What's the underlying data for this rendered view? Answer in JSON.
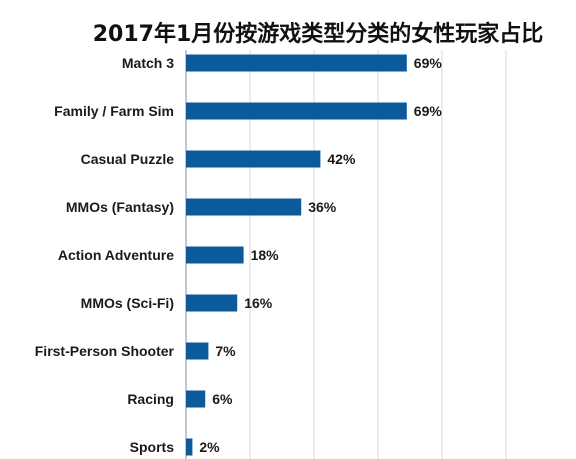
{
  "chart_data": {
    "type": "bar",
    "orientation": "horizontal",
    "title": "2017年1月份按游戏类型分类的女性玩家占比",
    "categories": [
      "Match 3",
      "Family / Farm Sim",
      "Casual Puzzle",
      "MMOs (Fantasy)",
      "Action Adventure",
      "MMOs (Sci-Fi)",
      "First-Person Shooter",
      "Racing",
      "Sports"
    ],
    "values": [
      69,
      69,
      42,
      36,
      18,
      16,
      7,
      6,
      2
    ],
    "value_labels": [
      "69%",
      "69%",
      "42%",
      "36%",
      "18%",
      "16%",
      "7%",
      "6%",
      "2%"
    ],
    "xlim": [
      0,
      100
    ],
    "grid": true,
    "bar_color": "#0a5a9c",
    "grid_color": "#d9d9d9"
  }
}
